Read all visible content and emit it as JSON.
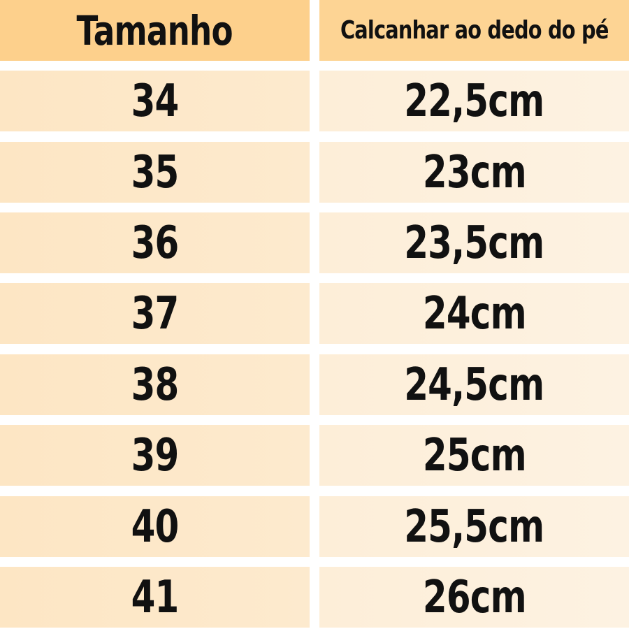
{
  "headers": {
    "size": "Tamanho",
    "length": "Calcanhar ao dedo do pé"
  },
  "rows": [
    {
      "size": "34",
      "length": "22,5cm"
    },
    {
      "size": "35",
      "length": "23cm"
    },
    {
      "size": "36",
      "length": "23,5cm"
    },
    {
      "size": "37",
      "length": "24cm"
    },
    {
      "size": "38",
      "length": "24,5cm"
    },
    {
      "size": "39",
      "length": "25cm"
    },
    {
      "size": "40",
      "length": "25,5cm"
    },
    {
      "size": "41",
      "length": "26cm"
    }
  ],
  "colors": {
    "header": "#fdd08c",
    "row_left": "#fde8c8",
    "row_right": "#fdf0dc"
  }
}
